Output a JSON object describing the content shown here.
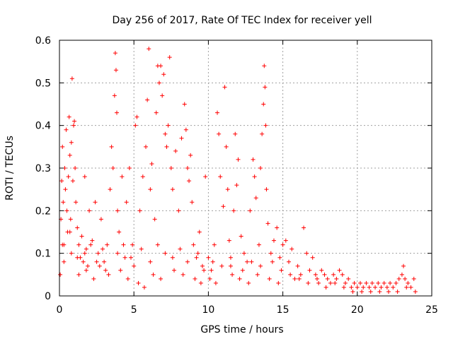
{
  "chart_data": {
    "type": "scatter",
    "title": "Day 256 of 2017, Rate Of TEC Index for receiver yell",
    "xlabel": "GPS time / hours",
    "ylabel": "ROTI / TECUs",
    "xlim": [
      0,
      25
    ],
    "ylim": [
      0,
      0.6
    ],
    "xticks": [
      0,
      5,
      10,
      15,
      20,
      25
    ],
    "xtick_labels": [
      "0",
      "5",
      "10",
      "15",
      "20",
      "25"
    ],
    "yticks": [
      0,
      0.1,
      0.2,
      0.3,
      0.4,
      0.5,
      0.6
    ],
    "ytick_labels": [
      "0",
      "0.1",
      "0.2",
      "0.3",
      "0.4",
      "0.5",
      "0.6"
    ],
    "grid": true,
    "marker": "plus",
    "color": "#ff0000",
    "series": [
      {
        "name": "ROTI",
        "points": [
          [
            0.05,
            0.05
          ],
          [
            0.1,
            0.18
          ],
          [
            0.15,
            0.27
          ],
          [
            0.2,
            0.35
          ],
          [
            0.25,
            0.22
          ],
          [
            0.3,
            0.12
          ],
          [
            0.35,
            0.3
          ],
          [
            0.4,
            0.25
          ],
          [
            0.45,
            0.39
          ],
          [
            0.5,
            0.2
          ],
          [
            0.55,
            0.15
          ],
          [
            0.6,
            0.28
          ],
          [
            0.65,
            0.42
          ],
          [
            0.7,
            0.33
          ],
          [
            0.75,
            0.18
          ],
          [
            0.8,
            0.36
          ],
          [
            0.85,
            0.51
          ],
          [
            0.9,
            0.27
          ],
          [
            0.95,
            0.4
          ],
          [
            1.0,
            0.41
          ],
          [
            1.05,
            0.3
          ],
          [
            1.1,
            0.22
          ],
          [
            1.2,
            0.16
          ],
          [
            1.3,
            0.12
          ],
          [
            1.4,
            0.09
          ],
          [
            1.5,
            0.14
          ],
          [
            1.6,
            0.08
          ],
          [
            1.7,
            0.28
          ],
          [
            1.8,
            0.11
          ],
          [
            1.9,
            0.07
          ],
          [
            2.0,
            0.2
          ],
          [
            2.2,
            0.13
          ],
          [
            2.4,
            0.22
          ],
          [
            2.6,
            0.1
          ],
          [
            2.8,
            0.18
          ],
          [
            3.0,
            0.08
          ],
          [
            3.2,
            0.12
          ],
          [
            3.4,
            0.25
          ],
          [
            3.5,
            0.35
          ],
          [
            3.6,
            0.3
          ],
          [
            3.7,
            0.47
          ],
          [
            3.75,
            0.57
          ],
          [
            3.8,
            0.53
          ],
          [
            3.85,
            0.43
          ],
          [
            3.9,
            0.2
          ],
          [
            4.0,
            0.15
          ],
          [
            4.2,
            0.28
          ],
          [
            4.4,
            0.09
          ],
          [
            4.5,
            0.22
          ],
          [
            4.7,
            0.3
          ],
          [
            4.9,
            0.12
          ],
          [
            5.0,
            0.07
          ],
          [
            5.1,
            0.4
          ],
          [
            5.2,
            0.42
          ],
          [
            5.4,
            0.2
          ],
          [
            5.6,
            0.28
          ],
          [
            5.8,
            0.35
          ],
          [
            5.9,
            0.46
          ],
          [
            6.0,
            0.58
          ],
          [
            6.1,
            0.25
          ],
          [
            6.2,
            0.31
          ],
          [
            6.4,
            0.18
          ],
          [
            6.5,
            0.43
          ],
          [
            6.6,
            0.54
          ],
          [
            6.7,
            0.5
          ],
          [
            6.8,
            0.54
          ],
          [
            6.9,
            0.47
          ],
          [
            7.0,
            0.52
          ],
          [
            7.1,
            0.38
          ],
          [
            7.2,
            0.35
          ],
          [
            7.3,
            0.4
          ],
          [
            7.4,
            0.56
          ],
          [
            7.5,
            0.3
          ],
          [
            7.6,
            0.25
          ],
          [
            7.8,
            0.34
          ],
          [
            8.0,
            0.2
          ],
          [
            8.2,
            0.37
          ],
          [
            8.4,
            0.45
          ],
          [
            8.5,
            0.39
          ],
          [
            8.6,
            0.3
          ],
          [
            8.7,
            0.27
          ],
          [
            8.8,
            0.33
          ],
          [
            8.9,
            0.22
          ],
          [
            9.0,
            0.12
          ],
          [
            9.2,
            0.09
          ],
          [
            9.4,
            0.15
          ],
          [
            9.6,
            0.07
          ],
          [
            9.8,
            0.28
          ],
          [
            10.0,
            0.09
          ],
          [
            10.2,
            0.06
          ],
          [
            10.4,
            0.12
          ],
          [
            10.6,
            0.43
          ],
          [
            10.7,
            0.38
          ],
          [
            10.8,
            0.28
          ],
          [
            11.0,
            0.21
          ],
          [
            11.1,
            0.49
          ],
          [
            11.2,
            0.35
          ],
          [
            11.3,
            0.25
          ],
          [
            11.4,
            0.13
          ],
          [
            11.5,
            0.07
          ],
          [
            11.7,
            0.2
          ],
          [
            11.8,
            0.38
          ],
          [
            11.9,
            0.26
          ],
          [
            12.0,
            0.32
          ],
          [
            12.2,
            0.14
          ],
          [
            12.4,
            0.1
          ],
          [
            12.6,
            0.08
          ],
          [
            12.8,
            0.2
          ],
          [
            13.0,
            0.32
          ],
          [
            13.1,
            0.28
          ],
          [
            13.2,
            0.23
          ],
          [
            13.4,
            0.12
          ],
          [
            13.5,
            0.3
          ],
          [
            13.6,
            0.38
          ],
          [
            13.7,
            0.45
          ],
          [
            13.75,
            0.54
          ],
          [
            13.8,
            0.49
          ],
          [
            13.85,
            0.4
          ],
          [
            13.9,
            0.25
          ],
          [
            14.0,
            0.17
          ],
          [
            14.2,
            0.1
          ],
          [
            14.4,
            0.13
          ],
          [
            14.6,
            0.16
          ],
          [
            14.8,
            0.09
          ],
          [
            15.0,
            0.12
          ],
          [
            15.2,
            0.13
          ],
          [
            15.4,
            0.08
          ],
          [
            15.6,
            0.11
          ],
          [
            15.8,
            0.04
          ],
          [
            16.0,
            0.07
          ],
          [
            16.2,
            0.05
          ],
          [
            16.4,
            0.16
          ],
          [
            16.6,
            0.1
          ],
          [
            16.8,
            0.06
          ],
          [
            17.0,
            0.09
          ],
          [
            17.2,
            0.05
          ],
          [
            17.4,
            0.03
          ],
          [
            17.6,
            0.06
          ],
          [
            17.8,
            0.05
          ],
          [
            18.0,
            0.04
          ],
          [
            18.2,
            0.03
          ],
          [
            18.4,
            0.05
          ],
          [
            18.6,
            0.04
          ],
          [
            18.8,
            0.06
          ],
          [
            19.0,
            0.05
          ],
          [
            19.2,
            0.03
          ],
          [
            19.4,
            0.04
          ],
          [
            19.6,
            0.02
          ],
          [
            19.8,
            0.03
          ],
          [
            20.0,
            0.02
          ],
          [
            20.2,
            0.03
          ],
          [
            20.4,
            0.02
          ],
          [
            20.6,
            0.03
          ],
          [
            20.8,
            0.02
          ],
          [
            21.0,
            0.03
          ],
          [
            21.2,
            0.02
          ],
          [
            21.4,
            0.03
          ],
          [
            21.6,
            0.02
          ],
          [
            21.8,
            0.03
          ],
          [
            22.0,
            0.02
          ],
          [
            22.2,
            0.03
          ],
          [
            22.4,
            0.02
          ],
          [
            22.6,
            0.03
          ],
          [
            22.8,
            0.04
          ],
          [
            23.0,
            0.05
          ],
          [
            23.1,
            0.07
          ],
          [
            23.2,
            0.04
          ],
          [
            23.4,
            0.03
          ],
          [
            23.6,
            0.02
          ],
          [
            23.8,
            0.04
          ],
          [
            0.3,
            0.08
          ],
          [
            0.8,
            0.1
          ],
          [
            1.3,
            0.05
          ],
          [
            1.8,
            0.06
          ],
          [
            2.3,
            0.04
          ],
          [
            2.7,
            0.07
          ],
          [
            3.3,
            0.05
          ],
          [
            4.1,
            0.06
          ],
          [
            4.6,
            0.04
          ],
          [
            5.3,
            0.03
          ],
          [
            5.7,
            0.02
          ],
          [
            6.3,
            0.05
          ],
          [
            6.8,
            0.04
          ],
          [
            7.7,
            0.06
          ],
          [
            8.3,
            0.05
          ],
          [
            9.1,
            0.04
          ],
          [
            9.5,
            0.03
          ],
          [
            10.1,
            0.04
          ],
          [
            10.5,
            0.03
          ],
          [
            11.6,
            0.05
          ],
          [
            12.1,
            0.04
          ],
          [
            12.7,
            0.03
          ],
          [
            13.3,
            0.05
          ],
          [
            14.1,
            0.04
          ],
          [
            14.7,
            0.03
          ],
          [
            0.2,
            0.12
          ],
          [
            0.7,
            0.15
          ],
          [
            1.2,
            0.09
          ],
          [
            1.7,
            0.1
          ],
          [
            2.1,
            0.12
          ],
          [
            2.5,
            0.08
          ],
          [
            2.9,
            0.11
          ],
          [
            3.1,
            0.06
          ],
          [
            3.9,
            0.1
          ],
          [
            4.3,
            0.12
          ],
          [
            4.8,
            0.09
          ],
          [
            5.5,
            0.11
          ],
          [
            6.1,
            0.08
          ],
          [
            6.6,
            0.12
          ],
          [
            7.1,
            0.1
          ],
          [
            7.6,
            0.09
          ],
          [
            8.1,
            0.11
          ],
          [
            8.6,
            0.08
          ],
          [
            9.3,
            0.1
          ],
          [
            9.7,
            0.06
          ],
          [
            10.3,
            0.08
          ],
          [
            10.9,
            0.07
          ],
          [
            11.5,
            0.09
          ],
          [
            12.3,
            0.06
          ],
          [
            12.9,
            0.08
          ],
          [
            13.5,
            0.07
          ],
          [
            14.3,
            0.08
          ],
          [
            14.9,
            0.06
          ],
          [
            15.5,
            0.05
          ],
          [
            16.1,
            0.04
          ],
          [
            16.7,
            0.03
          ],
          [
            17.3,
            0.04
          ],
          [
            17.9,
            0.02
          ],
          [
            18.5,
            0.03
          ],
          [
            19.1,
            0.02
          ],
          [
            19.7,
            0.01
          ],
          [
            20.3,
            0.01
          ],
          [
            20.9,
            0.01
          ],
          [
            21.5,
            0.01
          ],
          [
            22.1,
            0.01
          ],
          [
            22.7,
            0.01
          ],
          [
            23.3,
            0.02
          ],
          [
            23.9,
            0.01
          ]
        ]
      }
    ]
  }
}
